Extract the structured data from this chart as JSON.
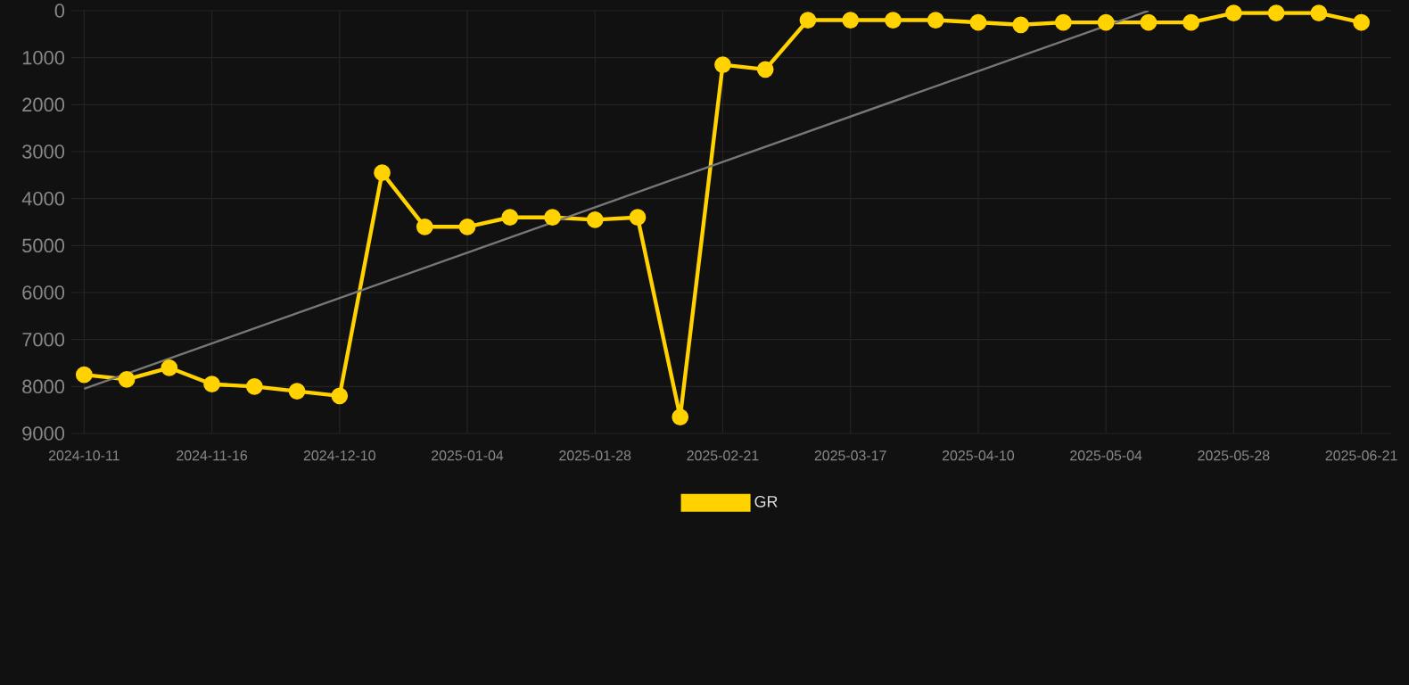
{
  "chart_data": {
    "type": "line",
    "categories": [
      "2024-10-11",
      null,
      null,
      "2024-11-16",
      null,
      null,
      "2024-12-10",
      null,
      null,
      "2025-01-04",
      null,
      null,
      "2025-01-28",
      null,
      null,
      "2025-02-21",
      null,
      null,
      "2025-03-17",
      null,
      null,
      "2025-04-10",
      null,
      null,
      "2025-05-04",
      null,
      null,
      "2025-05-28",
      null,
      null,
      "2025-06-21"
    ],
    "series": [
      {
        "name": "GR",
        "color": "#ffd200",
        "marker": "circle",
        "values": [
          7750,
          7850,
          7600,
          7950,
          8000,
          8100,
          8200,
          3450,
          4600,
          4600,
          4400,
          4400,
          4450,
          4400,
          8650,
          1150,
          1250,
          200,
          200,
          200,
          200,
          250,
          300,
          250,
          250,
          250,
          250,
          50,
          50,
          50,
          250
        ]
      },
      {
        "type": "line",
        "color": "#777777",
        "marker": "none",
        "values": [
          8050,
          null,
          null,
          null,
          null,
          null,
          null,
          null,
          null,
          null,
          null,
          null,
          null,
          null,
          null,
          null,
          null,
          null,
          null,
          null,
          null,
          null,
          null,
          null,
          null,
          0,
          null,
          null,
          null,
          null,
          null
        ]
      }
    ],
    "ylim": [
      9000,
      0
    ],
    "yticks": [
      0,
      1000,
      2000,
      3000,
      4000,
      5000,
      6000,
      7000,
      8000,
      9000
    ],
    "grid": true,
    "legend": "bottom"
  }
}
